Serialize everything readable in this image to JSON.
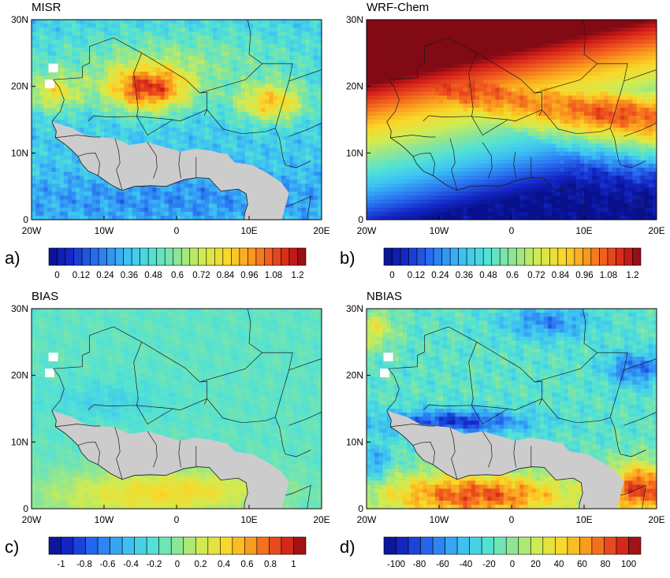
{
  "panels": [
    {
      "id": "a",
      "title": "MISR",
      "label": "a)",
      "field": "aod",
      "has_mask": true,
      "colorbar": {
        "palette": "rainbow",
        "n_colors": 31,
        "ticks": [
          "0",
          "0.12",
          "0.24",
          "0.36",
          "0.48",
          "0.6",
          "0.72",
          "0.84",
          "0.96",
          "1.08",
          "1.2"
        ]
      }
    },
    {
      "id": "b",
      "title": "WRF-Chem",
      "label": "b)",
      "field": "wrf",
      "has_mask": false,
      "colorbar": {
        "palette": "rainbow",
        "n_colors": 31,
        "ticks": [
          "0",
          "0.12",
          "0.24",
          "0.36",
          "0.48",
          "0.6",
          "0.72",
          "0.84",
          "0.96",
          "1.08",
          "1.2"
        ]
      }
    },
    {
      "id": "c",
      "title": "BIAS",
      "label": "c)",
      "field": "bias",
      "has_mask": true,
      "colorbar": {
        "palette": "rainbow",
        "n_colors": 21,
        "ticks": [
          "-1",
          "-0.8",
          "-0.6",
          "-0.4",
          "-0.2",
          "0",
          "0.2",
          "0.4",
          "0.6",
          "0.8",
          "1"
        ]
      }
    },
    {
      "id": "d",
      "title": "NBIAS",
      "label": "d)",
      "field": "nbias",
      "has_mask": true,
      "colorbar": {
        "palette": "rainbow",
        "n_colors": 21,
        "ticks": [
          "-100",
          "-80",
          "-60",
          "-40",
          "-20",
          "0",
          "20",
          "40",
          "60",
          "80",
          "100"
        ]
      }
    }
  ],
  "map": {
    "lon_ticks": [
      "20W",
      "10W",
      "0",
      "10E",
      "20E"
    ],
    "lat_ticks": [
      "0",
      "10N",
      "20N",
      "30N"
    ],
    "land_mask_color": "#cccccc",
    "border_color": "#1a1a1a"
  }
}
